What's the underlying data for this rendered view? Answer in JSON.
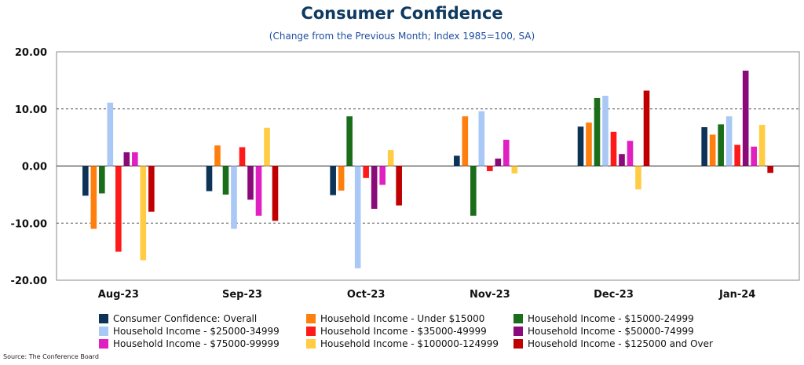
{
  "chart_data": {
    "type": "bar",
    "title": "Consumer Confidence",
    "subtitle": "(Change from the Previous Month; Index 1985=100, SA)",
    "categories": [
      "Aug-23",
      "Sep-23",
      "Oct-23",
      "Nov-23",
      "Dec-23",
      "Jan-24"
    ],
    "ylim": [
      -20,
      20
    ],
    "yticks": [
      -20,
      -10,
      0,
      10,
      20
    ],
    "ytick_labels": [
      "-20.00",
      "-10.00",
      "0.00",
      "10.00",
      "20.00"
    ],
    "gridlines": "dashed at -10 and 10",
    "legend_position": "bottom",
    "series": [
      {
        "name": "Consumer Confidence: Overall",
        "color": "#0d3457",
        "values": [
          -5.2,
          -4.4,
          -5.1,
          1.8,
          6.9,
          6.8
        ]
      },
      {
        "name": "Household Income - Under $15000",
        "color": "#ff7f0e",
        "values": [
          -11.0,
          3.6,
          -4.3,
          8.7,
          7.6,
          5.5
        ]
      },
      {
        "name": "Household Income - $15000-24999",
        "color": "#1a6e1a",
        "values": [
          -4.8,
          -5.0,
          8.7,
          -8.7,
          11.9,
          7.3
        ]
      },
      {
        "name": "Household Income - $25000-34999",
        "color": "#a9c8f5",
        "values": [
          11.1,
          -11.0,
          -17.9,
          9.6,
          12.3,
          8.7
        ]
      },
      {
        "name": "Household Income - $35000-49999",
        "color": "#ff1a1a",
        "values": [
          -15.0,
          3.3,
          -2.1,
          -0.9,
          6.0,
          3.7
        ]
      },
      {
        "name": "Household Income - $50000-74999",
        "color": "#8b0a7a",
        "values": [
          2.4,
          -5.9,
          -7.5,
          1.3,
          2.1,
          16.7
        ]
      },
      {
        "name": "Household Income - $75000-99999",
        "color": "#e020c0",
        "values": [
          2.4,
          -8.7,
          -3.3,
          4.6,
          4.4,
          3.4
        ]
      },
      {
        "name": "Household Income - $100000-124999",
        "color": "#ffcc44",
        "values": [
          -16.5,
          6.7,
          2.8,
          -1.3,
          -4.1,
          7.2
        ]
      },
      {
        "name": "Household Income - $125000 and Over",
        "color": "#c00000",
        "values": [
          -8.0,
          -9.6,
          -6.9,
          0.0,
          13.2,
          -1.2
        ]
      }
    ]
  },
  "footer": {
    "source": "Source: The Conference Board"
  }
}
